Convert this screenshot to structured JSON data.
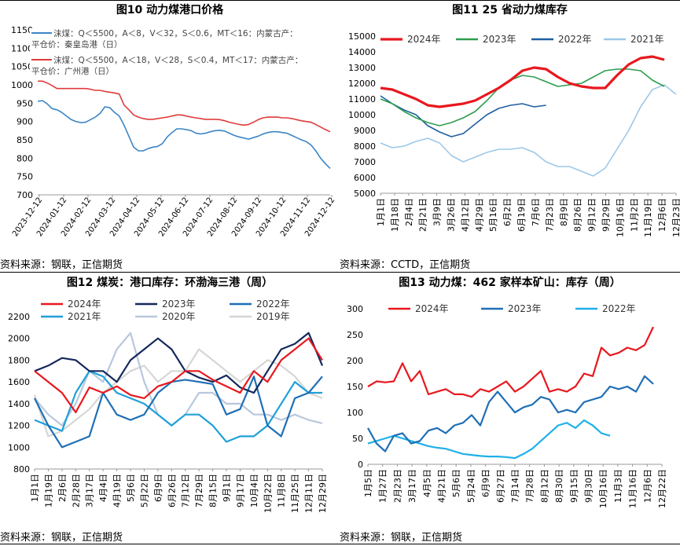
{
  "charts": [
    {
      "title": "图10   动力煤港口价格",
      "source": "资料来源：钢联，正信期货",
      "chart_data": {
        "type": "line",
        "ylim": [
          700,
          1150
        ],
        "yticks": [
          "700",
          "750",
          "800",
          "850",
          "900",
          "950",
          "1000",
          "1050",
          "1100",
          "1150"
        ],
        "xticks": [
          "2023-12-12",
          "2024-01-12",
          "2024-02-12",
          "2024-03-12",
          "2024-04-12",
          "2024-05-12",
          "2024-06-12",
          "2024-07-12",
          "2024-08-12",
          "2024-09-12",
          "2024-10-12",
          "2024-11-12",
          "2024-12-12"
        ],
        "series": [
          {
            "name": "沫煤：Q＜5500，A＜8，V＜32，S＜0.6，MT＜16：内蒙古产：平仓价：秦皇岛港（日）",
            "color": "#3d85c6",
            "values": [
              955,
              957,
              948,
              935,
              932,
              925,
              915,
              905,
              900,
              897,
              898,
              905,
              912,
              922,
              940,
              938,
              925,
              915,
              890,
              860,
              830,
              820,
              820,
              826,
              830,
              832,
              840,
              858,
              870,
              880,
              880,
              878,
              875,
              868,
              866,
              868,
              872,
              875,
              876,
              874,
              868,
              862,
              858,
              855,
              852,
              856,
              860,
              866,
              870,
              872,
              872,
              870,
              868,
              862,
              856,
              850,
              845,
              836,
              820,
              800,
              785,
              772
            ]
          },
          {
            "name": "沫煤：Q＜5500，A＜18，V＜28，S＜0.4，MT＜17：内蒙古产：平仓价：广州港（日）",
            "color": "#e03c3c",
            "values": [
              1010,
              1010,
              1005,
              998,
              990,
              990,
              990,
              990,
              990,
              990,
              990,
              988,
              985,
              985,
              982,
              980,
              978,
              975,
              945,
              932,
              918,
              912,
              908,
              906,
              906,
              908,
              910,
              912,
              915,
              918,
              918,
              915,
              912,
              910,
              908,
              906,
              906,
              906,
              905,
              902,
              898,
              895,
              892,
              890,
              892,
              898,
              905,
              910,
              912,
              912,
              912,
              910,
              910,
              908,
              905,
              902,
              900,
              898,
              892,
              885,
              878,
              872
            ]
          }
        ]
      }
    },
    {
      "title": "图11    25 省动力煤库存",
      "source": "资料来源：CCTD，正信期货",
      "chart_data": {
        "type": "line",
        "ylim": [
          5000,
          15000
        ],
        "yticks": [
          "5000",
          "6000",
          "7000",
          "8000",
          "9000",
          "10000",
          "11000",
          "12000",
          "13000",
          "14000",
          "15000"
        ],
        "xticks": [
          "1月1日",
          "1月18日",
          "2月4日",
          "2月21日",
          "3月9日",
          "3月26日",
          "4月12日",
          "4月29日",
          "5月16日",
          "6月2日",
          "6月19日",
          "7月6日",
          "7月23日",
          "8月9日",
          "8月26日",
          "9月12日",
          "9月29日",
          "10月16日",
          "11月2日",
          "11月19日",
          "12月6日",
          "12月23日"
        ],
        "series": [
          {
            "name": "2024年",
            "color": "#e8181e",
            "values": [
              11700,
              11600,
              11300,
              11000,
              10600,
              10500,
              10600,
              10700,
              10900,
              11300,
              11700,
              12200,
              12800,
              13000,
              12900,
              12400,
              12000,
              11800,
              11700,
              11700,
              12500,
              13200,
              13600,
              13700,
              13500
            ]
          },
          {
            "name": "2023年",
            "color": "#2e9e4f",
            "values": [
              11000,
              10700,
              10200,
              9800,
              9500,
              9300,
              9500,
              9800,
              10200,
              10900,
              11700,
              12200,
              12500,
              12400,
              12100,
              11800,
              11900,
              12000,
              12400,
              12800,
              12900,
              12900,
              12800,
              12200,
              11800
            ]
          },
          {
            "name": "2022年",
            "color": "#1f5fa0",
            "values": [
              11200,
              10700,
              10300,
              10000,
              9300,
              8900,
              8600,
              8800,
              9400,
              10000,
              10400,
              10600,
              10700,
              10500,
              10600
            ]
          },
          {
            "name": "2021年",
            "color": "#9ec8e8",
            "values": [
              8200,
              7900,
              8000,
              8300,
              8500,
              8200,
              7400,
              7000,
              7300,
              7600,
              7800,
              7800,
              7900,
              7600,
              7000,
              6700,
              6700,
              6400,
              6100,
              6600,
              7800,
              9000,
              10500,
              11600,
              11900,
              11300
            ]
          }
        ]
      }
    },
    {
      "title": "图12    煤炭：港口库存：环渤海三港（周）",
      "source": "资料来源：钢联，正信期货",
      "chart_data": {
        "type": "line",
        "ylim": [
          800,
          2200
        ],
        "yticks": [
          "800",
          "1000",
          "1200",
          "1400",
          "1600",
          "1800",
          "2000",
          "2200"
        ],
        "xticks": [
          "1月1日",
          "1月19日",
          "2月6日",
          "2月28日",
          "3月17日",
          "4月4日",
          "4月19日",
          "5月6日",
          "5月22日",
          "6月9日",
          "6月26日",
          "7月12日",
          "7月29日",
          "8月15日",
          "9月1日",
          "9月17日",
          "10月4日",
          "10月22日",
          "11月8日",
          "11月25日",
          "12月11日",
          "12月29日"
        ],
        "series": [
          {
            "name": "2024年",
            "color": "#e8181e",
            "values": [
              1700,
              1600,
              1500,
              1320,
              1550,
              1500,
              1560,
              1480,
              1450,
              1560,
              1600,
              1700,
              1700,
              1620,
              1560,
              1500,
              1700,
              1600,
              1800,
              1900,
              2000,
              1800
            ]
          },
          {
            "name": "2023年",
            "color": "#14285a",
            "values": [
              1700,
              1750,
              1820,
              1800,
              1700,
              1700,
              1600,
              1800,
              1900,
              2000,
              1900,
              1700,
              1640,
              1600,
              1660,
              1550,
              1500,
              1700,
              1900,
              1950,
              2050,
              1750
            ]
          },
          {
            "name": "2022年",
            "color": "#1f6fb5",
            "values": [
              1450,
              1200,
              1000,
              1050,
              1100,
              1500,
              1300,
              1250,
              1300,
              1500,
              1600,
              1620,
              1600,
              1580,
              1300,
              1350,
              1650,
              1200,
              1100,
              1450,
              1500,
              1650
            ]
          },
          {
            "name": "2021年",
            "color": "#1fa0d8",
            "values": [
              1250,
              1200,
              1150,
              1500,
              1700,
              1650,
              1500,
              1450,
              1400,
              1300,
              1200,
              1300,
              1300,
              1200,
              1050,
              1100,
              1100,
              1200,
              1400,
              1600,
              1500,
              1500
            ]
          },
          {
            "name": "2020年",
            "color": "#b8c8dc",
            "values": [
              1450,
              1300,
              1200,
              1400,
              1700,
              1600,
              1900,
              2050,
              1600,
              1300,
              1200,
              1300,
              1500,
              1500,
              1400,
              1400,
              1300,
              1300,
              1250,
              1300,
              1250,
              1220
            ]
          },
          {
            "name": "2019年",
            "color": "#d6d6d6",
            "values": [
              1480,
              1100,
              1150,
              1250,
              1350,
              1500,
              1600,
              1700,
              1750,
              1600,
              1700,
              1700,
              1900,
              1800,
              1700,
              1600,
              1700,
              1800,
              1750,
              1650,
              1500,
              1450
            ]
          }
        ]
      }
    },
    {
      "title": "图13    动力煤：462 家样本矿山：库存（周）",
      "source": "资料来源：钢联，正信期货",
      "chart_data": {
        "type": "line",
        "ylim": [
          0,
          300
        ],
        "yticks": [
          "0",
          "50",
          "100",
          "150",
          "200",
          "250",
          "300"
        ],
        "xticks": [
          "1月5日",
          "1月27日",
          "2月23日",
          "3月17日",
          "4月5日",
          "4月21日",
          "5月6日",
          "5月24日",
          "6月9日",
          "6月27日",
          "7月14日",
          "7月28日",
          "8月12日",
          "8月30日",
          "9月15日",
          "9月30日",
          "10月16日",
          "11月3日",
          "11月16日",
          "12月6日",
          "12月22日"
        ],
        "series": [
          {
            "name": "2024年",
            "color": "#e8181e",
            "values": [
              150,
              160,
              158,
              160,
              195,
              160,
              180,
              135,
              140,
              145,
              135,
              135,
              130,
              145,
              140,
              150,
              160,
              140,
              150,
              165,
              180,
              140,
              145,
              140,
              150,
              175,
              170,
              225,
              210,
              215,
              225,
              220,
              230,
              265
            ]
          },
          {
            "name": "2023年",
            "color": "#1f6fb5",
            "values": [
              70,
              40,
              25,
              55,
              60,
              40,
              45,
              65,
              70,
              60,
              75,
              80,
              95,
              75,
              120,
              140,
              120,
              100,
              110,
              115,
              130,
              125,
              100,
              105,
              100,
              120,
              125,
              130,
              150,
              145,
              150,
              140,
              170,
              155
            ]
          },
          {
            "name": "2022年",
            "color": "#1fb0e8",
            "values": [
              40,
              45,
              50,
              55,
              50,
              45,
              40,
              35,
              32,
              30,
              25,
              20,
              18,
              16,
              15,
              15,
              14,
              12,
              20,
              30,
              45,
              60,
              75,
              80,
              70,
              85,
              75,
              60,
              55
            ]
          }
        ]
      }
    }
  ]
}
